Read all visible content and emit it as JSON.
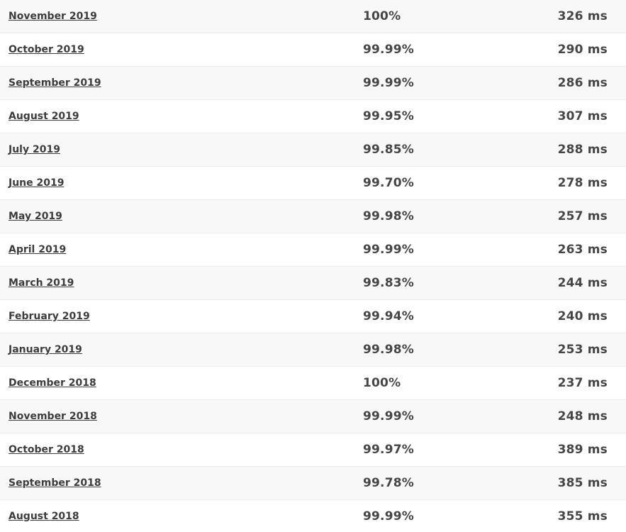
{
  "rows": [
    {
      "month": "November 2019",
      "uptime": "100%",
      "response": "326 ms"
    },
    {
      "month": "October 2019",
      "uptime": "99.99%",
      "response": "290 ms"
    },
    {
      "month": "September 2019",
      "uptime": "99.99%",
      "response": "286 ms"
    },
    {
      "month": "August 2019",
      "uptime": "99.95%",
      "response": "307 ms"
    },
    {
      "month": "July 2019",
      "uptime": "99.85%",
      "response": "288 ms"
    },
    {
      "month": "June 2019",
      "uptime": "99.70%",
      "response": "278 ms"
    },
    {
      "month": "May 2019",
      "uptime": "99.98%",
      "response": "257 ms"
    },
    {
      "month": "April 2019",
      "uptime": "99.99%",
      "response": "263 ms"
    },
    {
      "month": "March 2019",
      "uptime": "99.83%",
      "response": "244 ms"
    },
    {
      "month": "February 2019",
      "uptime": "99.94%",
      "response": "240 ms"
    },
    {
      "month": "January 2019",
      "uptime": "99.98%",
      "response": "253 ms"
    },
    {
      "month": "December 2018",
      "uptime": "100%",
      "response": "237 ms"
    },
    {
      "month": "November 2018",
      "uptime": "99.99%",
      "response": "248 ms"
    },
    {
      "month": "October 2018",
      "uptime": "99.97%",
      "response": "389 ms"
    },
    {
      "month": "September 2018",
      "uptime": "99.78%",
      "response": "385 ms"
    },
    {
      "month": "August 2018",
      "uptime": "99.99%",
      "response": "355 ms"
    }
  ]
}
